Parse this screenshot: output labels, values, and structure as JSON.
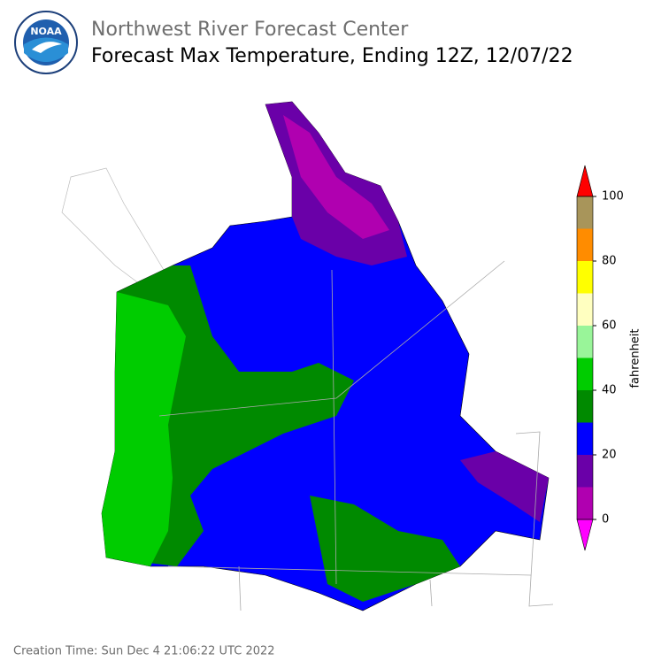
{
  "header": {
    "logo_text": "NOAA",
    "title": "Northwest River Forecast Center",
    "subtitle": "Forecast Max Temperature, Ending 12Z, 12/07/22"
  },
  "colorbar": {
    "label": "fahrenheit",
    "bounds": [
      0,
      10,
      20,
      30,
      40,
      50,
      60,
      70,
      80,
      90,
      100
    ],
    "colors": [
      "#b000b0",
      "#6a00a8",
      "#0000ff",
      "#008a00",
      "#00cc00",
      "#99f599",
      "#ffffc0",
      "#ffff00",
      "#ff8c00",
      "#a8955a"
    ],
    "under_color": "#ff00ff",
    "over_color": "#ff0000",
    "ticks": [
      0,
      20,
      40,
      60,
      80,
      100
    ]
  },
  "footer": {
    "creation_time": "Creation Time: Sun Dec 4 21:06:22 UTC 2022"
  }
}
